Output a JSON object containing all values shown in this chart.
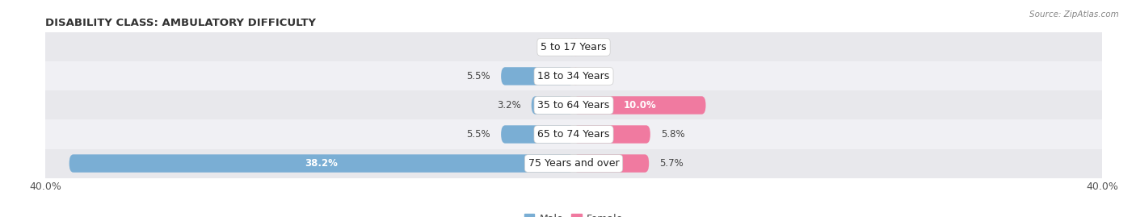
{
  "title": "DISABILITY CLASS: AMBULATORY DIFFICULTY",
  "source": "Source: ZipAtlas.com",
  "categories": [
    "5 to 17 Years",
    "18 to 34 Years",
    "35 to 64 Years",
    "65 to 74 Years",
    "75 Years and over"
  ],
  "male_values": [
    0.0,
    5.5,
    3.2,
    5.5,
    38.2
  ],
  "female_values": [
    0.0,
    0.0,
    10.0,
    5.8,
    5.7
  ],
  "male_color": "#7aaed4",
  "female_color": "#f07aa0",
  "male_color_light": "#c5ddef",
  "female_color_light": "#f9bdd0",
  "row_bg_color": "#e8e8ec",
  "row_bg_light": "#f0f0f4",
  "axis_max": 40.0,
  "bar_height": 0.62,
  "title_fontsize": 9.5,
  "label_fontsize": 8.5,
  "cat_fontsize": 9,
  "tick_fontsize": 9,
  "legend_fontsize": 9
}
